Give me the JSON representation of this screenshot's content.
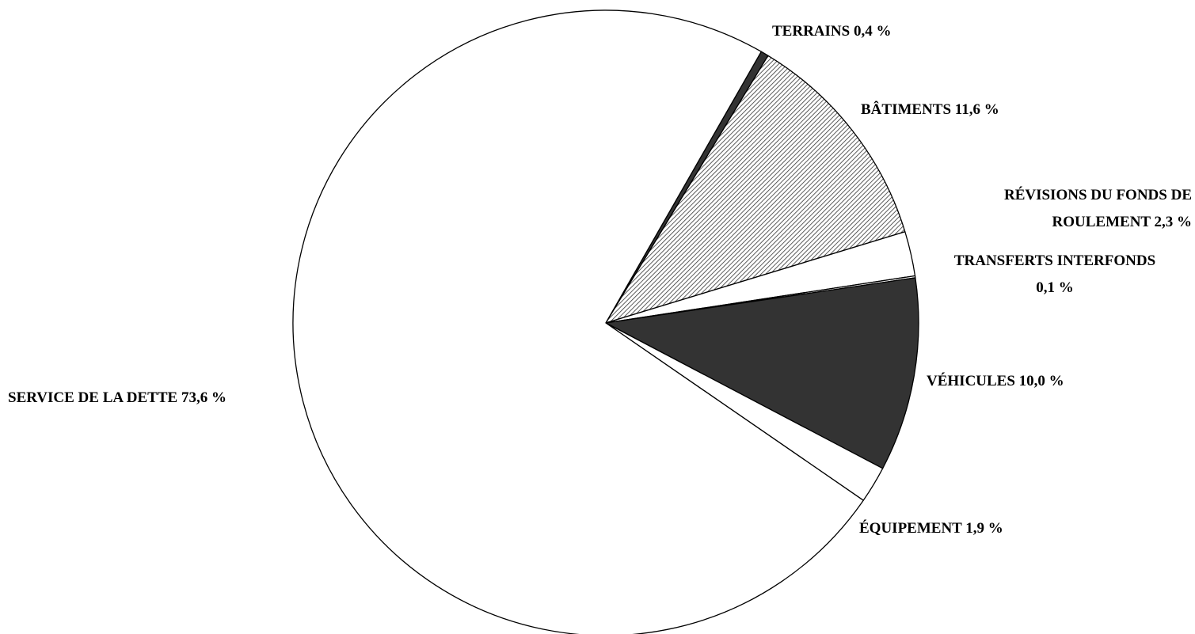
{
  "chart_data": {
    "type": "pie",
    "categories": [
      "TERRAINS",
      "BÂTIMENTS",
      "RÉVISIONS DU FONDS DE ROULEMENT",
      "TRANSFERTS INTERFONDS",
      "VÉHICULES",
      "ÉQUIPEMENT",
      "SERVICE DE LA DETTE"
    ],
    "values": [
      0.4,
      11.6,
      2.3,
      0.1,
      10.0,
      1.9,
      73.6
    ],
    "value_labels": [
      "0,4 %",
      "11,6 %",
      "2,3 %",
      "0,1 %",
      "10,0 %",
      "1,9 %",
      "73,6 %"
    ],
    "colors": [
      "#333333",
      "url(#hatch)",
      "#ffffff",
      "#ffffff",
      "#333333",
      "#ffffff",
      "#ffffff"
    ]
  }
}
